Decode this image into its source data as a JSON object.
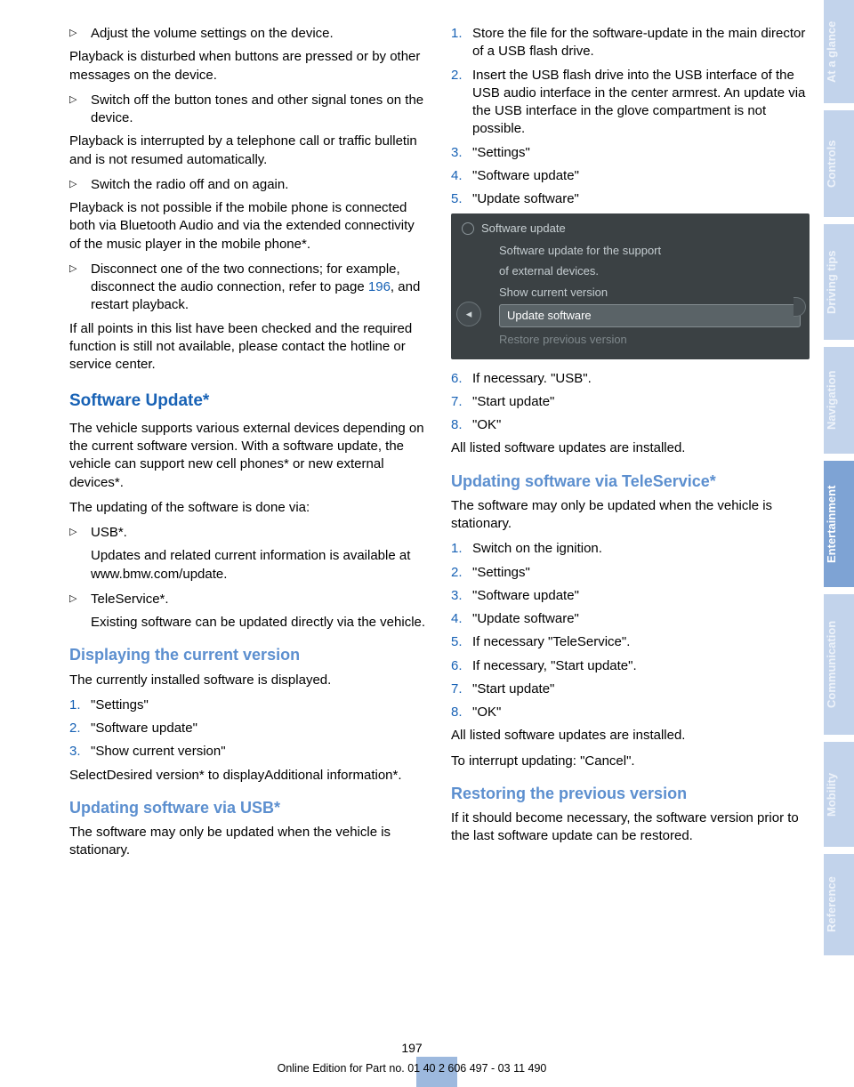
{
  "colors": {
    "link": "#1862b5",
    "heading": "#1862b5",
    "subheading": "#5c8fcf",
    "tab_light": "#c2d3eb",
    "tab_mid": "#9db9de",
    "tab_dark": "#7ea3d4",
    "screenshot_bg": "#3b4144"
  },
  "left": {
    "b1": "Adjust the volume settings on the device.",
    "p1": "Playback is disturbed when buttons are pressed or by other messages on the device.",
    "b2": "Switch off the button tones and other signal tones on the device.",
    "p2": "Playback is interrupted by a telephone call or traffic bulletin and is not resumed automatically.",
    "b3": "Switch the radio off and on again.",
    "p3": "Playback is not possible if the mobile phone is connected both via Bluetooth Audio and via the extended connectivity of the music player in the mobile phone*.",
    "b4a": "Disconnect one of the two connections; for example, disconnect the audio connection, refer to page ",
    "b4link": "196",
    "b4b": ", and restart playback.",
    "p4": "If all points in this list have been checked and the required function is still not available, please contact the hotline or service center.",
    "h1": "Software Update*",
    "p5": "The vehicle supports various external devices depending on the current software version. With a software update, the vehicle can support new cell phones* or new external devices*.",
    "p6": "The updating of the software is done via:",
    "b5": "USB*.",
    "b5s": "Updates and related current information is available at www.bmw.com/update.",
    "b6": "TeleService*.",
    "b6s": "Existing software can be updated directly via the vehicle.",
    "h2a": "Displaying the current version",
    "p7": "The currently installed software is displayed.",
    "n1": "\"Settings\"",
    "n2": "\"Software update\"",
    "n3": "\"Show current version\"",
    "p8": "SelectDesired version* to displayAdditional information*.",
    "h2b": "Updating software via USB*",
    "p9": "The software may only be updated when the vehicle is stationary."
  },
  "right": {
    "n1": "Store the file for the software-update in the main director of a USB flash drive.",
    "n2": "Insert the USB flash drive into the USB interface of the USB audio interface in the center armrest. An update via the USB interface in the glove compartment is not possible.",
    "n3": "\"Settings\"",
    "n4": "\"Software update\"",
    "n5": "\"Update software\"",
    "screenshot": {
      "title": "Software update",
      "line1a": "Software update for the support",
      "line1b": "of external devices.",
      "line2": "Show current version",
      "line3": "Update software",
      "line4": "Restore previous version"
    },
    "n6": "If necessary. \"USB\".",
    "n7": "\"Start update\"",
    "n8": "\"OK\"",
    "p1": "All listed software updates are installed.",
    "h2a": "Updating software via TeleService*",
    "p2": "The software may only be updated when the vehicle is stationary.",
    "t1": "Switch on the ignition.",
    "t2": "\"Settings\"",
    "t3": "\"Software update\"",
    "t4": "\"Update software\"",
    "t5": "If necessary \"TeleService\".",
    "t6": "If necessary, \"Start update\".",
    "t7": "\"Start update\"",
    "t8": "\"OK\"",
    "p3": "All listed software updates are installed.",
    "p4": "To interrupt updating: \"Cancel\".",
    "h2b": "Restoring the previous version",
    "p5": "If it should become necessary, the software version prior to the last software update can be restored."
  },
  "tabs": [
    "At a glance",
    "Controls",
    "Driving tips",
    "Navigation",
    "Entertainment",
    "Communication",
    "Mobility",
    "Reference"
  ],
  "tab_heights": [
    116,
    120,
    130,
    120,
    142,
    158,
    118,
    114
  ],
  "tab_shades": [
    "light",
    "light",
    "light",
    "light",
    "dark",
    "light",
    "light",
    "light"
  ],
  "page_number": "197",
  "footer": "Online Edition for Part no. 01 40 2 606 497 - 03 11 490"
}
